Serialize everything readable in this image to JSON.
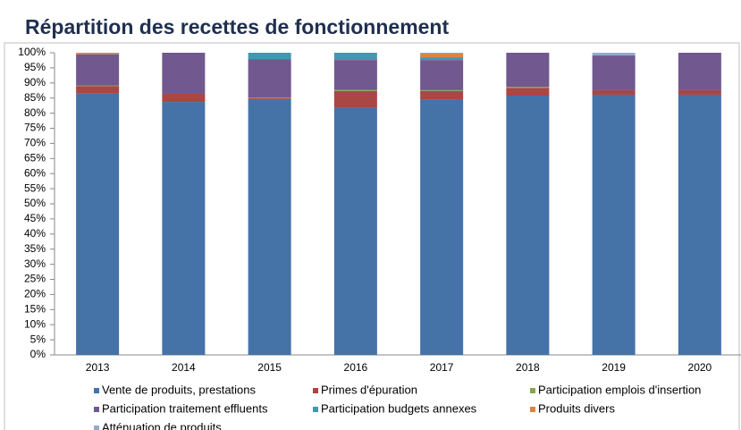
{
  "chart_data": {
    "type": "stacked_bar",
    "title": "Répartition des recettes de fonctionnement",
    "categories": [
      "2013",
      "2014",
      "2015",
      "2016",
      "2017",
      "2018",
      "2019",
      "2020"
    ],
    "series": [
      {
        "name": "Vente de produits, prestations",
        "color": "#4572a7",
        "values": [
          86.5,
          83.7,
          84.6,
          81.7,
          84.6,
          85.8,
          86.1,
          86.1
        ]
      },
      {
        "name": "Primes d'épuration",
        "color": "#aa4643",
        "values": [
          2.5,
          2.7,
          0.3,
          5.6,
          2.7,
          2.6,
          1.5,
          1.5
        ]
      },
      {
        "name": "Participation emplois d'insertion",
        "color": "#89a54e",
        "values": [
          0.2,
          0,
          0.3,
          0.4,
          0.3,
          0.3,
          0,
          0
        ]
      },
      {
        "name": "Participation traitement effluents",
        "color": "#71588f",
        "values": [
          10.3,
          13.6,
          12.7,
          9.9,
          10.0,
          11.3,
          11.5,
          12.4
        ]
      },
      {
        "name": "Participation budgets annexes",
        "color": "#4198af",
        "values": [
          0,
          0,
          2.1,
          2.4,
          0.9,
          0,
          0,
          0
        ]
      },
      {
        "name": "Produits divers",
        "color": "#db843d",
        "values": [
          0.5,
          0,
          0,
          0,
          1.2,
          0,
          0,
          0
        ]
      },
      {
        "name": "Atténuation de produits",
        "color": "#93a9cf",
        "values": [
          0,
          0,
          0,
          0,
          0.3,
          0,
          0.9,
          0
        ]
      }
    ],
    "ylim": [
      0,
      100
    ],
    "yticks": [
      {
        "value": 0,
        "label": "0%"
      },
      {
        "value": 5,
        "label": "5%"
      },
      {
        "value": 10,
        "label": "10%"
      },
      {
        "value": 15,
        "label": "15%"
      },
      {
        "value": 20,
        "label": "20%"
      },
      {
        "value": 25,
        "label": "25%"
      },
      {
        "value": 30,
        "label": "30%"
      },
      {
        "value": 35,
        "label": "35%"
      },
      {
        "value": 40,
        "label": "40%"
      },
      {
        "value": 45,
        "label": "45%"
      },
      {
        "value": 50,
        "label": "50%"
      },
      {
        "value": 55,
        "label": "55%"
      },
      {
        "value": 60,
        "label": "60%"
      },
      {
        "value": 65,
        "label": "65%"
      },
      {
        "value": 70,
        "label": "70%"
      },
      {
        "value": 75,
        "label": "75%"
      },
      {
        "value": 80,
        "label": "80%"
      },
      {
        "value": 85,
        "label": "85%"
      },
      {
        "value": 90,
        "label": "90%"
      },
      {
        "value": 95,
        "label": "95%"
      },
      {
        "value": 100,
        "label": "100%"
      }
    ],
    "grid": false
  }
}
